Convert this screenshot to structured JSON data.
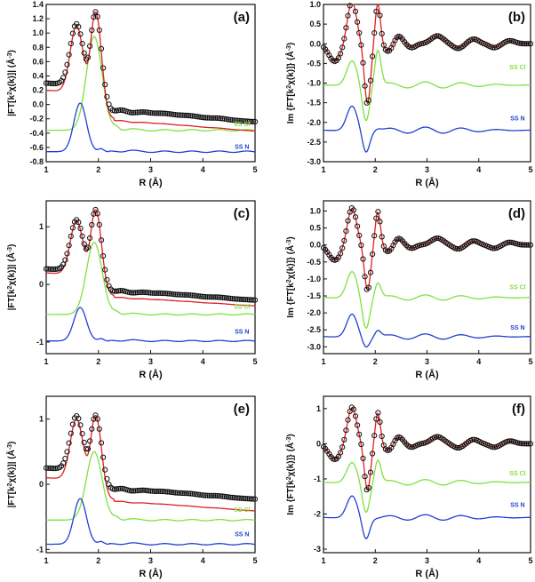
{
  "figure": {
    "width": 602,
    "height": 655
  },
  "colors": {
    "data": "#111111",
    "fit": "#e02020",
    "ss_cl": "#80e040",
    "ss_n": "#2040d0"
  },
  "chart_data": [
    {
      "panel": "(a)",
      "type": "line",
      "xlabel": "R (Å)",
      "ylabel": "|FT[k²χ(k)]| (Å⁻³)",
      "ylabel_parts": [
        "|FT[k",
        "2",
        "χ(k)]| (Å",
        "-3",
        ")"
      ],
      "xlim": [
        1,
        5
      ],
      "ylim": [
        -0.8,
        1.4
      ],
      "xticks": [
        "1",
        "2",
        "3",
        "4",
        "5"
      ],
      "yticks": [
        "-0.8",
        "-0.6",
        "-0.4",
        "-0.2",
        "0.0",
        "0.2",
        "0.4",
        "0.6",
        "0.8",
        "1.0",
        "1.2",
        "1.4"
      ],
      "curve_kind": "mag",
      "data": {
        "base": 0.3,
        "amp": 1.0,
        "p1": 1.13,
        "p2": 1.3,
        "tail": 0.1
      },
      "fit": {
        "base": 0.2,
        "amp": 1.0,
        "p1": 1.1,
        "p2": 1.3,
        "tail": 0.05
      },
      "series_labels": [
        {
          "name": "SS Cl",
          "x": 4.75,
          "y": -0.3,
          "color": "#80e040"
        },
        {
          "name": "SS N",
          "x": 4.75,
          "y": -0.62,
          "color": "#2040d0"
        }
      ],
      "ss_cl": {
        "offset": -0.36,
        "peak": 0.95,
        "peak_x": 1.92
      },
      "ss_n": {
        "offset": -0.66,
        "peak": 0.02,
        "peak_x": 1.65
      }
    },
    {
      "panel": "(b)",
      "type": "line",
      "xlabel": "R (Å)",
      "ylabel": "Im {FT[k²χ(k)]} (Å⁻³)",
      "ylabel_parts": [
        "Im {FT[k",
        "2",
        "χ(k)]} (Å",
        "-3",
        ")"
      ],
      "xlim": [
        1,
        5
      ],
      "ylim": [
        -3.0,
        1.0
      ],
      "xticks": [
        "1",
        "2",
        "3",
        "4",
        "5"
      ],
      "yticks": [
        "-3.0",
        "-2.5",
        "-2.0",
        "-1.5",
        "-1.0",
        "-0.5",
        "0.0",
        "0.5",
        "1.0"
      ],
      "curve_kind": "im",
      "data": {
        "max1": 1.0,
        "max2": 0.9,
        "min": -1.55
      },
      "series_labels": [
        {
          "name": "SS Cl",
          "x": 4.75,
          "y": -0.65,
          "color": "#80e040"
        },
        {
          "name": "SS N",
          "x": 4.75,
          "y": -1.95,
          "color": "#2040d0"
        }
      ],
      "ss_cl": {
        "offset": -1.05,
        "peak": -0.45,
        "min": -1.95,
        "peak2": -0.15
      },
      "ss_n": {
        "offset": -2.2,
        "peak": -1.6,
        "min": -2.75,
        "peak2": -2.15
      }
    },
    {
      "panel": "(c)",
      "type": "line",
      "xlabel": "R (Å)",
      "ylabel": "|FT[k²χ(k)]| (Å⁻³)",
      "ylabel_parts": [
        "|FT[k",
        "2",
        "χ(k)]| (Å",
        "-3",
        ")"
      ],
      "xlim": [
        1,
        5
      ],
      "ylim": [
        -1.2,
        1.45
      ],
      "xticks": [
        "1",
        "2",
        "3",
        "4",
        "5"
      ],
      "yticks": [
        "-1",
        "0",
        "1"
      ],
      "curve_kind": "mag",
      "data": {
        "base": 0.27,
        "amp": 1.0,
        "p1": 1.12,
        "p2": 1.3,
        "tail": 0.1
      },
      "fit": {
        "base": 0.2,
        "amp": 1.0,
        "p1": 1.1,
        "p2": 1.3,
        "tail": 0.05
      },
      "series_labels": [
        {
          "name": "SS Cl",
          "x": 4.75,
          "y": -0.42,
          "color": "#80e040"
        },
        {
          "name": "SS N",
          "x": 4.75,
          "y": -0.85,
          "color": "#2040d0"
        }
      ],
      "ss_cl": {
        "offset": -0.52,
        "peak": 0.73,
        "peak_x": 1.92
      },
      "ss_n": {
        "offset": -0.98,
        "peak": -0.4,
        "peak_x": 1.65
      }
    },
    {
      "panel": "(d)",
      "type": "line",
      "xlabel": "R (Å)",
      "ylabel": "Im {FT[k²χ(k)]} (Å⁻³)",
      "ylabel_parts": [
        "Im {FT[k",
        "2",
        "χ(k)]} (Å",
        "-3",
        ")"
      ],
      "xlim": [
        1,
        5
      ],
      "ylim": [
        -3.2,
        1.3
      ],
      "xticks": [
        "1",
        "2",
        "3",
        "4",
        "5"
      ],
      "yticks": [
        "-3.0",
        "-2.5",
        "-2.0",
        "-1.5",
        "-1.0",
        "-0.5",
        "0.0",
        "0.5",
        "1.0"
      ],
      "curve_kind": "im",
      "data": {
        "max1": 1.0,
        "max2": 0.85,
        "min": -1.35
      },
      "series_labels": [
        {
          "name": "SS Cl",
          "x": 4.75,
          "y": -1.3,
          "color": "#80e040"
        },
        {
          "name": "SS N",
          "x": 4.75,
          "y": -2.5,
          "color": "#2040d0"
        }
      ],
      "ss_cl": {
        "offset": -1.55,
        "peak": -0.8,
        "min": -2.45,
        "peak2": -1.1
      },
      "ss_n": {
        "offset": -2.7,
        "peak": -2.05,
        "min": -3.0,
        "peak2": -2.5
      }
    },
    {
      "panel": "(e)",
      "type": "line",
      "xlabel": "R (Å)",
      "ylabel": "|FT[k²χ(k)]| (Å⁻³)",
      "ylabel_parts": [
        "|FT[k",
        "2",
        "χ(k)]| (Å",
        "-3",
        ")"
      ],
      "xlim": [
        1,
        5
      ],
      "ylim": [
        -1.05,
        1.35
      ],
      "xticks": [
        "1",
        "2",
        "3",
        "4",
        "5"
      ],
      "yticks": [
        "-1",
        "0",
        "1"
      ],
      "curve_kind": "mag",
      "data": {
        "base": 0.25,
        "amp": 1.0,
        "p1": 1.05,
        "p2": 1.06,
        "tail": 0.1
      },
      "fit": {
        "base": 0.1,
        "amp": 1.0,
        "p1": 1.0,
        "p2": 1.06,
        "tail": 0.05
      },
      "series_labels": [
        {
          "name": "SS Cl",
          "x": 4.75,
          "y": -0.42,
          "color": "#80e040"
        },
        {
          "name": "SS N",
          "x": 4.75,
          "y": -0.8,
          "color": "#2040d0"
        }
      ],
      "ss_cl": {
        "offset": -0.55,
        "peak": 0.5,
        "peak_x": 1.92
      },
      "ss_n": {
        "offset": -0.92,
        "peak": -0.22,
        "peak_x": 1.65
      }
    },
    {
      "panel": "(f)",
      "type": "line",
      "xlabel": "R (Å)",
      "ylabel": "Im {FT[k²χ(k)]} (Å⁻³)",
      "ylabel_parts": [
        "Im {FT[k",
        "2",
        "χ(k)]} (Å",
        "-3",
        ")"
      ],
      "xlim": [
        1,
        5
      ],
      "ylim": [
        -3.1,
        1.35
      ],
      "xticks": [
        "1",
        "2",
        "3",
        "4",
        "5"
      ],
      "yticks": [
        "-3",
        "-2",
        "-1",
        "0",
        "1"
      ],
      "curve_kind": "im",
      "data": {
        "max1": 0.95,
        "max2": 0.75,
        "min": -1.35
      },
      "series_labels": [
        {
          "name": "SS Cl",
          "x": 4.75,
          "y": -0.9,
          "color": "#80e040"
        },
        {
          "name": "SS N",
          "x": 4.75,
          "y": -1.8,
          "color": "#2040d0"
        }
      ],
      "ss_cl": {
        "offset": -1.1,
        "peak": -0.55,
        "min": -1.95,
        "peak2": -0.45
      },
      "ss_n": {
        "offset": -2.1,
        "peak": -1.5,
        "min": -2.7,
        "peak2": -2.1
      }
    }
  ]
}
